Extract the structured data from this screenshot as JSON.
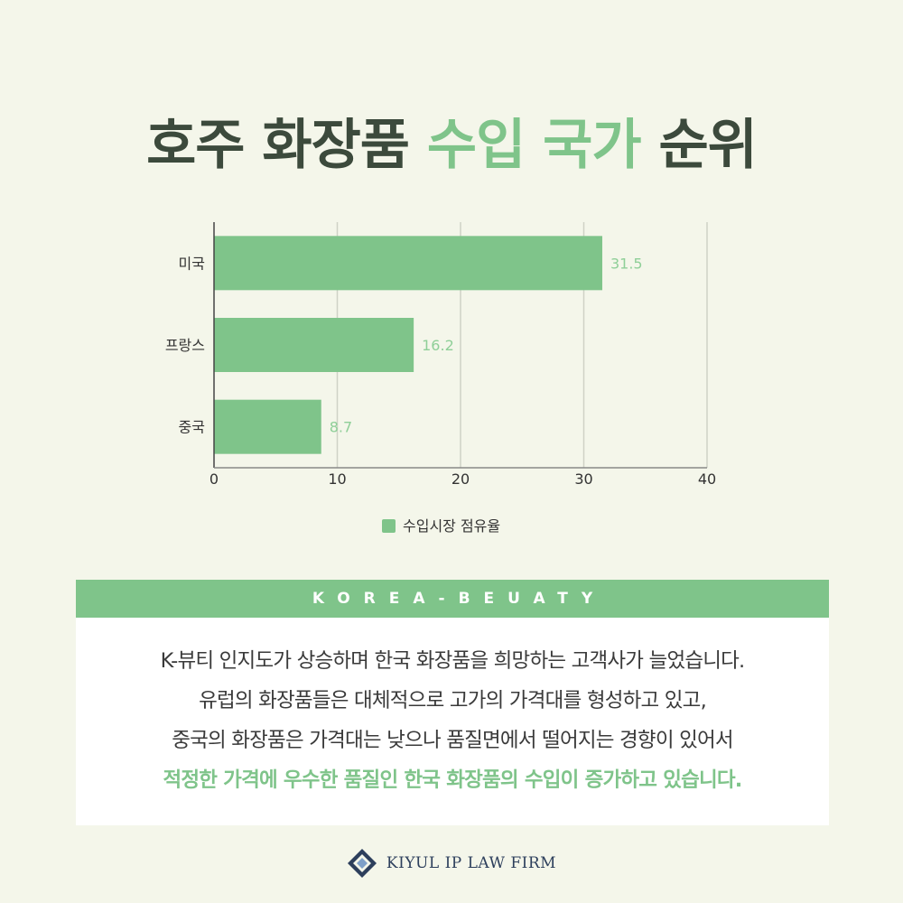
{
  "title": {
    "part1": "호주 화장품 ",
    "highlight": "수입 국가",
    "part2": " 순위"
  },
  "chart_data": {
    "type": "bar",
    "orientation": "horizontal",
    "categories": [
      "미국",
      "프랑스",
      "중국"
    ],
    "series": [
      {
        "name": "수입시장 점유율",
        "values": [
          31.5,
          16.2,
          8.7
        ]
      }
    ],
    "xlim": [
      0,
      40
    ],
    "xticks": [
      0,
      10,
      20,
      30,
      40
    ],
    "grid": "vertical",
    "legend_position": "bottom-center",
    "colors": {
      "bar": "#7fc48a",
      "label": "#8fcf98"
    }
  },
  "banner": {
    "label": "KOREA-BEUATY"
  },
  "body": {
    "lines": [
      "K-뷰티 인지도가 상승하며 한국 화장품을 희망하는 고객사가 늘었습니다.",
      "유럽의 화장품들은 대체적으로 고가의 가격대를 형성하고 있고,",
      "중국의 화장품은 가격대는 낮으나 품질면에서 떨어지는 경향이 있어서"
    ],
    "highlight": "적정한 가격에 우수한 품질인 한국 화장품의 수입이 증가하고 있습니다."
  },
  "footer": {
    "brand": "KIYUL IP LAW FIRM",
    "logo_icon": "diamond-logo-icon"
  },
  "colors": {
    "background": "#f4f6ea",
    "accent": "#7fc48a",
    "title": "#3c4a3c",
    "brand": "#2d3f5c"
  }
}
